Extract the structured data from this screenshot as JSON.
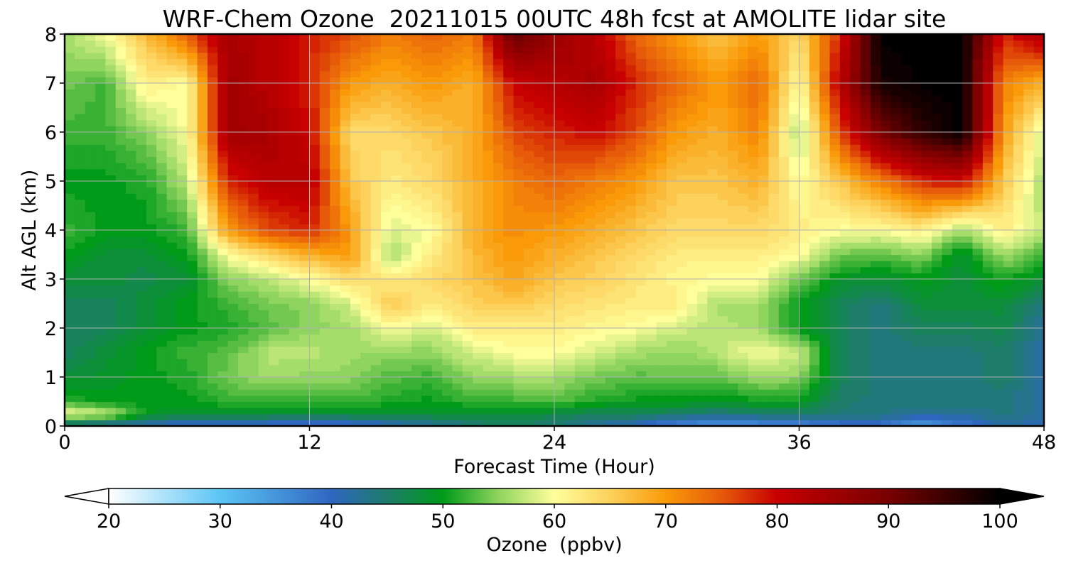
{
  "chart_data": {
    "type": "heatmap",
    "title": "WRF-Chem Ozone  20211015 00UTC 48h fcst at AMOLITE lidar site",
    "xlabel": "Forecast Time (Hour)",
    "ylabel": "Alt AGL (km)",
    "xlim": [
      0,
      48
    ],
    "ylim": [
      0,
      8
    ],
    "x_ticks": [
      "0",
      "12",
      "24",
      "36",
      "48"
    ],
    "y_ticks": [
      "0",
      "1",
      "2",
      "3",
      "4",
      "5",
      "6",
      "7",
      "8"
    ],
    "grid": true,
    "colorbar": {
      "label": "Ozone  (ppbv)",
      "min": 20,
      "max": 100,
      "ticks": [
        "20",
        "30",
        "40",
        "50",
        "60",
        "70",
        "80",
        "90",
        "100"
      ],
      "extend": "both",
      "stops": [
        {
          "value": 20,
          "color": "#ffffff"
        },
        {
          "value": 30,
          "color": "#5cc5f5"
        },
        {
          "value": 40,
          "color": "#2f66c0"
        },
        {
          "value": 45,
          "color": "#1e7c6a"
        },
        {
          "value": 50,
          "color": "#009a19"
        },
        {
          "value": 55,
          "color": "#8fd45e"
        },
        {
          "value": 60,
          "color": "#ffff9c"
        },
        {
          "value": 65,
          "color": "#fcd15c"
        },
        {
          "value": 70,
          "color": "#fa9a08"
        },
        {
          "value": 75,
          "color": "#e65a0a"
        },
        {
          "value": 80,
          "color": "#c80000"
        },
        {
          "value": 90,
          "color": "#780000"
        },
        {
          "value": 100,
          "color": "#000000"
        }
      ]
    },
    "altitudes_km": [
      0,
      0.25,
      0.5,
      1,
      1.5,
      2,
      2.5,
      3,
      3.5,
      4,
      5,
      6,
      7,
      8
    ],
    "times_h": [
      0,
      2,
      4,
      6,
      8,
      10,
      12,
      14,
      16,
      18,
      20,
      22,
      24,
      26,
      28,
      30,
      32,
      34,
      36,
      38,
      40,
      42,
      44,
      46,
      48
    ],
    "ozone_ppbv": [
      [
        42,
        60,
        52,
        48,
        46,
        46,
        46,
        48,
        50,
        52,
        50,
        52,
        54,
        56
      ],
      [
        40,
        58,
        50,
        49,
        48,
        46,
        46,
        48,
        48,
        50,
        50,
        52,
        52,
        60
      ],
      [
        40,
        50,
        50,
        50,
        50,
        48,
        48,
        47,
        48,
        50,
        51,
        55,
        62,
        67
      ],
      [
        38,
        48,
        50,
        51,
        52,
        50,
        50,
        48,
        50,
        52,
        57,
        60,
        60,
        75
      ],
      [
        38,
        48,
        52,
        54,
        53,
        51,
        52,
        55,
        60,
        70,
        78,
        85,
        85,
        84
      ],
      [
        38,
        48,
        52,
        56,
        57,
        53,
        54,
        57,
        64,
        76,
        82,
        84,
        82,
        82
      ],
      [
        37,
        48,
        52,
        55,
        57,
        55,
        55,
        60,
        68,
        78,
        82,
        80,
        78,
        78
      ],
      [
        38,
        48,
        52,
        55,
        56,
        56,
        58,
        64,
        70,
        70,
        66,
        64,
        70,
        76
      ],
      [
        40,
        48,
        51,
        53,
        55,
        60,
        66,
        62,
        56,
        58,
        62,
        64,
        68,
        72
      ],
      [
        42,
        48,
        50,
        52,
        55,
        58,
        62,
        64,
        62,
        60,
        64,
        66,
        70,
        74
      ],
      [
        44,
        48,
        52,
        55,
        58,
        62,
        65,
        66,
        67,
        68,
        68,
        68,
        68,
        72
      ],
      [
        46,
        48,
        52,
        56,
        60,
        62,
        66,
        69,
        70,
        71,
        72,
        76,
        80,
        92
      ],
      [
        44,
        47,
        53,
        56,
        60,
        62,
        64,
        66,
        68,
        70,
        74,
        78,
        82,
        86
      ],
      [
        42,
        46,
        51,
        54,
        58,
        61,
        63,
        65,
        66,
        68,
        72,
        80,
        84,
        82
      ],
      [
        40,
        46,
        50,
        53,
        56,
        60,
        62,
        63,
        64,
        66,
        70,
        76,
        78,
        74
      ],
      [
        36,
        45,
        50,
        54,
        55,
        58,
        62,
        61,
        62,
        64,
        66,
        70,
        74,
        70
      ],
      [
        34,
        44,
        49,
        53,
        57,
        57,
        56,
        60,
        62,
        64,
        66,
        68,
        70,
        66
      ],
      [
        35,
        45,
        50,
        56,
        60,
        56,
        56,
        60,
        62,
        64,
        68,
        72,
        74,
        70
      ],
      [
        36,
        45,
        50,
        55,
        58,
        50,
        50,
        54,
        60,
        62,
        60,
        56,
        60,
        64
      ],
      [
        38,
        44,
        45,
        46,
        46,
        46,
        46,
        49,
        54,
        60,
        66,
        76,
        82,
        78
      ],
      [
        38,
        44,
        44,
        44,
        44,
        44,
        44,
        48,
        53,
        60,
        72,
        90,
        98,
        100
      ],
      [
        34,
        42,
        44,
        44,
        44,
        46,
        48,
        50,
        55,
        62,
        78,
        96,
        100,
        100
      ],
      [
        38,
        42,
        44,
        44,
        44,
        46,
        48,
        48,
        48,
        56,
        80,
        100,
        100,
        100
      ],
      [
        42,
        44,
        44,
        45,
        45,
        47,
        48,
        51,
        56,
        62,
        66,
        70,
        72,
        78
      ],
      [
        40,
        42,
        42,
        42,
        42,
        42,
        44,
        48,
        52,
        57,
        56,
        58,
        68,
        84
      ]
    ]
  }
}
